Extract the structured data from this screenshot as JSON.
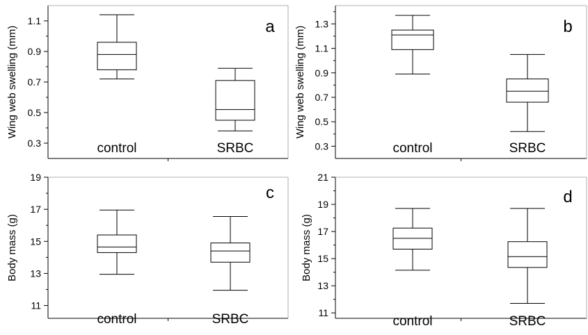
{
  "chart_data": [
    {
      "type": "box",
      "panel_label": "a",
      "ylabel": "Wing web swelling (mm)",
      "ylim": [
        0.2,
        1.2
      ],
      "yticks": [
        0.3,
        0.5,
        0.7,
        0.9,
        1.1
      ],
      "ytick_labels": [
        "0.3",
        "0.5",
        "0.7",
        "0.9",
        "1.1"
      ],
      "categories": [
        "control",
        "SRBC"
      ],
      "boxes": [
        {
          "category": "control",
          "min": 0.72,
          "q1": 0.78,
          "median": 0.88,
          "q3": 0.96,
          "max": 1.14
        },
        {
          "category": "SRBC",
          "min": 0.38,
          "q1": 0.45,
          "median": 0.52,
          "q3": 0.71,
          "max": 0.79
        }
      ]
    },
    {
      "type": "box",
      "panel_label": "b",
      "ylabel": "Wing web swelling (mm)",
      "ylim": [
        0.2,
        1.45
      ],
      "yticks": [
        0.3,
        0.5,
        0.7,
        0.9,
        1.1,
        1.3
      ],
      "ytick_labels": [
        "0.3",
        "0.5",
        "0.7",
        "0.9",
        "1.1",
        "1.3"
      ],
      "categories": [
        "control",
        "SRBC"
      ],
      "boxes": [
        {
          "category": "control",
          "min": 0.89,
          "q1": 1.09,
          "median": 1.21,
          "q3": 1.25,
          "max": 1.37
        },
        {
          "category": "SRBC",
          "min": 0.42,
          "q1": 0.66,
          "median": 0.75,
          "q3": 0.85,
          "max": 1.05
        }
      ]
    },
    {
      "type": "box",
      "panel_label": "c",
      "ylabel": "Body mass (g)",
      "ylim": [
        10.2,
        19.0
      ],
      "yticks": [
        11,
        13,
        15,
        17,
        19
      ],
      "ytick_labels": [
        "11",
        "13",
        "15",
        "17",
        "19"
      ],
      "categories": [
        "control",
        "SRBC"
      ],
      "boxes": [
        {
          "category": "control",
          "min": 12.95,
          "q1": 14.3,
          "median": 14.65,
          "q3": 15.4,
          "max": 16.95
        },
        {
          "category": "SRBC",
          "min": 11.95,
          "q1": 13.7,
          "median": 14.4,
          "q3": 14.9,
          "max": 16.55
        }
      ]
    },
    {
      "type": "box",
      "panel_label": "d",
      "ylabel": "Body mass (g)",
      "ylim": [
        10.6,
        21.0
      ],
      "yticks": [
        11,
        13,
        15,
        17,
        19,
        21
      ],
      "ytick_labels": [
        "11",
        "13",
        "15",
        "17",
        "19",
        "21"
      ],
      "categories": [
        "control",
        "SRBC"
      ],
      "boxes": [
        {
          "category": "control",
          "min": 14.15,
          "q1": 15.7,
          "median": 16.5,
          "q3": 17.25,
          "max": 18.7
        },
        {
          "category": "SRBC",
          "min": 11.7,
          "q1": 14.35,
          "median": 15.15,
          "q3": 16.25,
          "max": 18.7
        }
      ]
    }
  ]
}
